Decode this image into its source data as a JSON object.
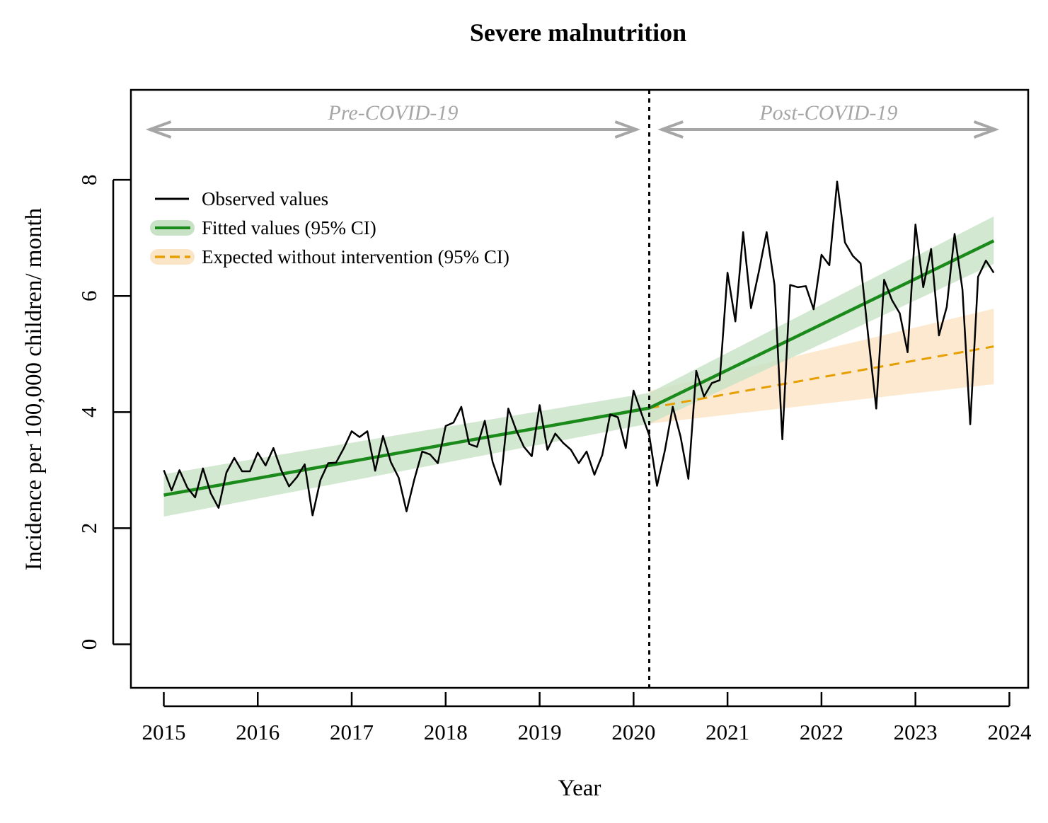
{
  "chart_data": {
    "type": "line",
    "title": "Severe malnutrition",
    "xlabel": "Year",
    "ylabel": "Incidence per 100,000 children/ month",
    "xlim": [
      2014.65,
      2024.2
    ],
    "ylim": [
      -0.75,
      9.55
    ],
    "x_ticks": [
      2015,
      2016,
      2017,
      2018,
      2019,
      2020,
      2021,
      2022,
      2023,
      2024
    ],
    "y_ticks": [
      0,
      2,
      4,
      6,
      8
    ],
    "intervention_x": 2020.167,
    "periods": [
      {
        "label": "Pre-COVID-19",
        "x_start": 2014.85,
        "x_end": 2020.03
      },
      {
        "label": "Post-COVID-19",
        "x_start": 2020.3,
        "x_end": 2023.85
      }
    ],
    "legend": {
      "placement": "top-left",
      "entries": [
        {
          "label": "Observed values",
          "color": "#000000",
          "style": "solid"
        },
        {
          "label": "Fitted values (95% CI)",
          "color": "#1a8a1a",
          "style": "solid",
          "band_color": "#c7e2c4"
        },
        {
          "label": "Expected without intervention (95% CI)",
          "color": "#e69f00",
          "style": "dashed",
          "band_color": "#fbe5c7"
        }
      ]
    },
    "series": [
      {
        "name": "Observed values",
        "color": "#000000",
        "start_x": 2015,
        "step": 0.0833333,
        "values": [
          3.0,
          2.65,
          3.0,
          2.7,
          2.53,
          3.03,
          2.6,
          2.35,
          2.96,
          3.21,
          2.98,
          2.98,
          3.3,
          3.08,
          3.38,
          3.0,
          2.72,
          2.88,
          3.1,
          2.22,
          2.83,
          3.12,
          3.13,
          3.38,
          3.67,
          3.57,
          3.67,
          2.99,
          3.59,
          3.14,
          2.87,
          2.29,
          2.84,
          3.32,
          3.27,
          3.12,
          3.76,
          3.82,
          4.09,
          3.45,
          3.4,
          3.85,
          3.14,
          2.75,
          4.06,
          3.69,
          3.4,
          3.24,
          4.12,
          3.35,
          3.63,
          3.47,
          3.35,
          3.12,
          3.32,
          2.92,
          3.26,
          3.96,
          3.91,
          3.38,
          4.37,
          3.98,
          3.6,
          2.73,
          3.34,
          4.09,
          3.58,
          2.85,
          4.71,
          4.27,
          4.5,
          4.55,
          6.4,
          5.56,
          7.1,
          5.79,
          6.42,
          7.1,
          6.19,
          3.53,
          6.19,
          6.15,
          6.17,
          5.77,
          6.71,
          6.53,
          7.97,
          6.92,
          6.69,
          6.56,
          5.27,
          4.06,
          6.28,
          5.93,
          5.7,
          5.03,
          7.23,
          6.15,
          6.81,
          5.32,
          5.81,
          7.07,
          6.11,
          3.79,
          6.33,
          6.61,
          6.4
        ]
      },
      {
        "name": "Fitted values",
        "color": "#1a8a1a",
        "x": [
          2015,
          2020.167,
          2023.833
        ],
        "values": [
          2.57,
          4.07,
          6.95
        ],
        "ci_lower": [
          2.2,
          3.8,
          6.55
        ],
        "ci_upper": [
          2.93,
          4.33,
          7.37
        ]
      },
      {
        "name": "Expected without intervention",
        "color": "#e69f00",
        "x": [
          2020.167,
          2023.833
        ],
        "values": [
          4.07,
          5.13
        ],
        "ci_lower": [
          3.8,
          4.48
        ],
        "ci_upper": [
          4.36,
          5.78
        ]
      }
    ]
  }
}
